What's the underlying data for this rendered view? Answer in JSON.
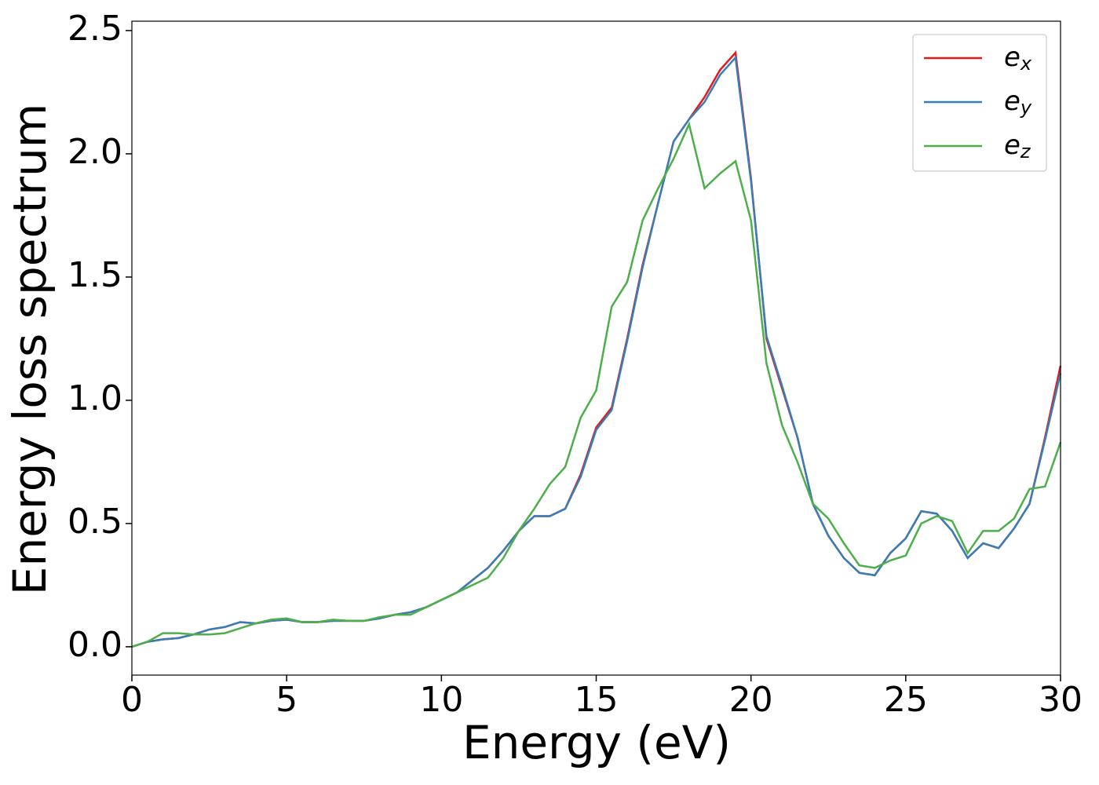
{
  "chart_data": {
    "type": "line",
    "xlabel": "Energy (eV)",
    "ylabel": "Energy loss spectrum",
    "x": [
      0,
      0.5,
      1,
      1.5,
      2,
      2.5,
      3,
      3.5,
      4,
      4.5,
      5,
      5.5,
      6,
      6.5,
      7,
      7.5,
      8,
      8.5,
      9,
      9.5,
      10,
      10.5,
      11,
      11.5,
      12,
      12.5,
      13,
      13.5,
      14,
      14.5,
      15,
      15.5,
      16,
      16.5,
      17,
      17.5,
      18,
      18.5,
      19,
      19.5,
      20,
      20.5,
      21,
      21.5,
      22,
      22.5,
      23,
      23.5,
      24,
      24.5,
      25,
      25.5,
      26,
      26.5,
      27,
      27.5,
      28,
      28.5,
      29,
      29.5,
      30
    ],
    "series": [
      {
        "name": "ex",
        "color": "#e41a1c",
        "values": [
          0,
          0.02,
          0.03,
          0.035,
          0.05,
          0.07,
          0.08,
          0.1,
          0.095,
          0.105,
          0.11,
          0.1,
          0.1,
          0.105,
          0.105,
          0.105,
          0.115,
          0.13,
          0.14,
          0.16,
          0.19,
          0.22,
          0.27,
          0.32,
          0.39,
          0.47,
          0.53,
          0.53,
          0.56,
          0.7,
          0.89,
          0.97,
          1.25,
          1.55,
          1.8,
          2.05,
          2.14,
          2.23,
          2.34,
          2.41,
          1.9,
          1.25,
          1.05,
          0.85,
          0.58,
          0.45,
          0.36,
          0.3,
          0.29,
          0.38,
          0.44,
          0.55,
          0.54,
          0.47,
          0.36,
          0.42,
          0.4,
          0.48,
          0.58,
          0.85,
          1.14
        ]
      },
      {
        "name": "ey",
        "color": "#377eb8",
        "values": [
          0,
          0.02,
          0.03,
          0.035,
          0.05,
          0.07,
          0.08,
          0.1,
          0.095,
          0.105,
          0.11,
          0.1,
          0.1,
          0.105,
          0.105,
          0.105,
          0.115,
          0.13,
          0.14,
          0.16,
          0.19,
          0.22,
          0.27,
          0.32,
          0.39,
          0.47,
          0.53,
          0.53,
          0.56,
          0.69,
          0.88,
          0.96,
          1.24,
          1.54,
          1.8,
          2.05,
          2.14,
          2.21,
          2.32,
          2.39,
          1.89,
          1.26,
          1.06,
          0.85,
          0.58,
          0.45,
          0.36,
          0.3,
          0.29,
          0.38,
          0.44,
          0.55,
          0.54,
          0.47,
          0.36,
          0.42,
          0.4,
          0.48,
          0.58,
          0.84,
          1.11
        ]
      },
      {
        "name": "ez",
        "color": "#4daf4a",
        "values": [
          0,
          0.02,
          0.055,
          0.055,
          0.05,
          0.05,
          0.055,
          0.075,
          0.095,
          0.11,
          0.115,
          0.1,
          0.1,
          0.11,
          0.105,
          0.105,
          0.12,
          0.13,
          0.13,
          0.16,
          0.19,
          0.22,
          0.25,
          0.28,
          0.36,
          0.47,
          0.56,
          0.66,
          0.73,
          0.93,
          1.04,
          1.38,
          1.48,
          1.73,
          1.86,
          1.98,
          2.12,
          1.86,
          1.92,
          1.97,
          1.73,
          1.15,
          0.9,
          0.75,
          0.58,
          0.52,
          0.42,
          0.33,
          0.32,
          0.35,
          0.37,
          0.5,
          0.53,
          0.51,
          0.38,
          0.47,
          0.47,
          0.52,
          0.64,
          0.65,
          0.83
        ]
      }
    ],
    "xlim": [
      0,
      30
    ],
    "xticks": [
      0,
      5,
      10,
      15,
      20,
      25,
      30
    ],
    "ylim": [
      -0.115,
      2.538
    ],
    "yticks": [
      {
        "value": 0,
        "label": "0.0"
      },
      0.5,
      {
        "value": 1,
        "label": "1.0"
      },
      1.5,
      {
        "value": 2,
        "label": "2.0"
      },
      2.5
    ],
    "legend": "upper right",
    "grid": false
  }
}
